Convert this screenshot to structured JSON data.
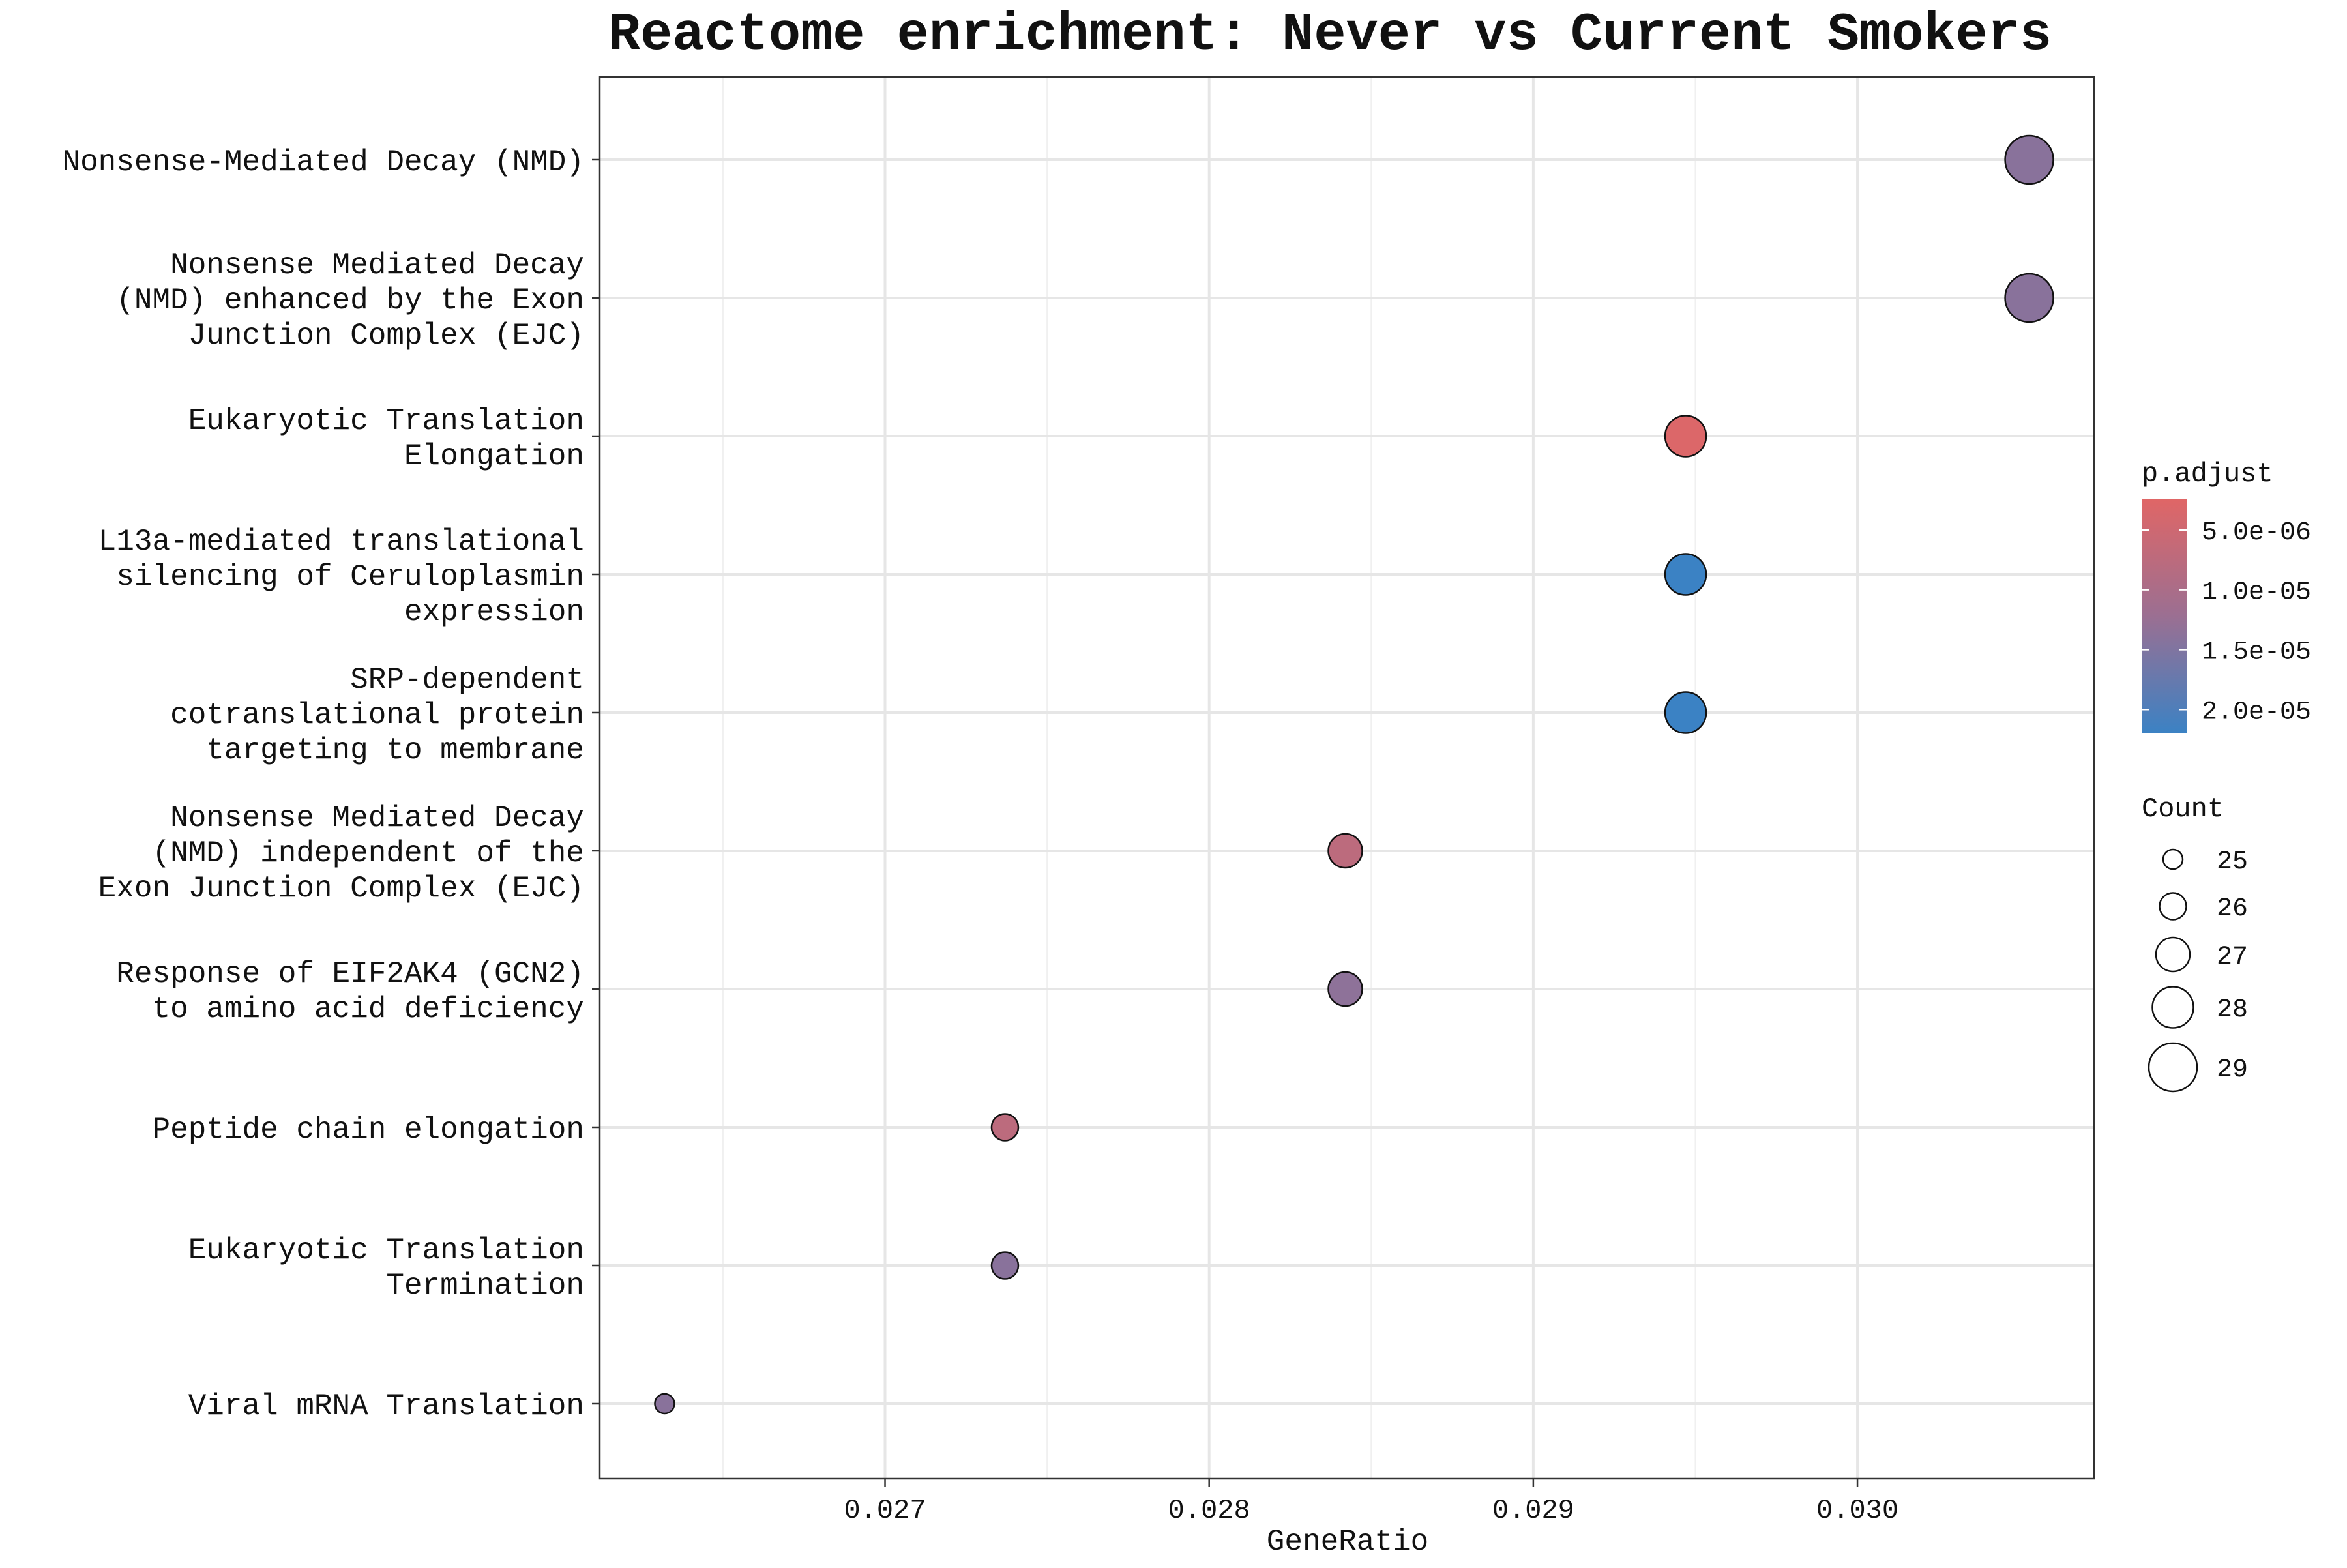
{
  "chart_data": {
    "type": "scatter",
    "title": "Reactome enrichment: Never vs Current Smokers",
    "xlabel": "GeneRatio",
    "ylabel": "",
    "xlim": [
      0.02612,
      0.03073
    ],
    "x_ticks": [
      "0.027",
      "0.028",
      "0.029",
      "0.030"
    ],
    "x_tick_values": [
      0.027,
      0.028,
      0.029,
      0.03
    ],
    "grid": true,
    "legend_position": "right",
    "points": [
      {
        "label": "Nonsense-Mediated Decay (NMD)",
        "label_lines": [
          "Nonsense-Mediated Decay (NMD)"
        ],
        "x": 0.03053,
        "p_adjust": 1.4e-05,
        "count": 29
      },
      {
        "label": "Nonsense Mediated Decay (NMD) enhanced by the Exon Junction Complex (EJC)",
        "label_lines": [
          "Nonsense Mediated Decay",
          "(NMD) enhanced by the Exon",
          "Junction Complex (EJC)"
        ],
        "x": 0.03053,
        "p_adjust": 1.4e-05,
        "count": 29
      },
      {
        "label": "Eukaryotic Translation Elongation",
        "label_lines": [
          "Eukaryotic Translation",
          "Elongation"
        ],
        "x": 0.02947,
        "p_adjust": 3e-06,
        "count": 28
      },
      {
        "label": "L13a-mediated translational silencing of Ceruloplasmin expression",
        "label_lines": [
          "L13a-mediated translational",
          "silencing of Ceruloplasmin",
          "expression"
        ],
        "x": 0.02947,
        "p_adjust": 2.2e-05,
        "count": 28
      },
      {
        "label": "SRP-dependent cotranslational protein targeting to membrane",
        "label_lines": [
          "SRP-dependent",
          "cotranslational protein",
          "targeting to membrane"
        ],
        "x": 0.02947,
        "p_adjust": 2.2e-05,
        "count": 28
      },
      {
        "label": "Nonsense Mediated Decay (NMD) independent of the Exon Junction Complex (EJC)",
        "label_lines": [
          "Nonsense Mediated Decay",
          "(NMD) independent of the",
          "Exon Junction Complex (EJC)"
        ],
        "x": 0.02842,
        "p_adjust": 7.5e-06,
        "count": 27
      },
      {
        "label": "Response of EIF2AK4 (GCN2) to amino acid deficiency",
        "label_lines": [
          "Response of EIF2AK4 (GCN2)",
          "to amino acid deficiency"
        ],
        "x": 0.02842,
        "p_adjust": 1.35e-05,
        "count": 27
      },
      {
        "label": "Peptide chain elongation",
        "label_lines": [
          "Peptide chain elongation"
        ],
        "x": 0.02737,
        "p_adjust": 7.5e-06,
        "count": 26
      },
      {
        "label": "Eukaryotic Translation Termination",
        "label_lines": [
          "Eukaryotic Translation",
          "Termination"
        ],
        "x": 0.02737,
        "p_adjust": 1.4e-05,
        "count": 26
      },
      {
        "label": "Viral mRNA Translation",
        "label_lines": [
          "Viral mRNA Translation"
        ],
        "x": 0.02632,
        "p_adjust": 1.4e-05,
        "count": 25
      }
    ],
    "color_legend": {
      "title": "p.adjust",
      "low_value": 2.4e-06,
      "high_value": 2.2e-05,
      "low_color": "#e06666",
      "mid_color": "#9b6f92",
      "high_color": "#3b82c4",
      "ticks": [
        "5.0e-06",
        "1.0e-05",
        "1.5e-05",
        "2.0e-05"
      ],
      "tick_values": [
        5e-06,
        1e-05,
        1.5e-05,
        2e-05
      ]
    },
    "size_legend": {
      "title": "Count",
      "values": [
        25,
        26,
        27,
        28,
        29
      ]
    }
  }
}
